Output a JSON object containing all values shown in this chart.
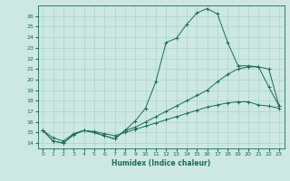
{
  "xlabel": "Humidex (Indice chaleur)",
  "bg_color": "#cce8e0",
  "grid_color": "#aad4c8",
  "line_color": "#1a6b5a",
  "xlim": [
    -0.5,
    23.5
  ],
  "ylim": [
    13.5,
    27.0
  ],
  "xticks": [
    0,
    1,
    2,
    3,
    4,
    5,
    6,
    7,
    8,
    9,
    10,
    11,
    12,
    13,
    14,
    15,
    16,
    17,
    18,
    19,
    20,
    21,
    22,
    23
  ],
  "yticks": [
    14,
    15,
    16,
    17,
    18,
    19,
    20,
    21,
    22,
    23,
    24,
    25,
    26
  ],
  "series": [
    {
      "x": [
        0,
        1,
        2,
        3,
        4,
        5,
        6,
        7,
        8,
        9,
        10,
        11,
        12,
        13,
        14,
        15,
        16,
        17,
        18,
        19,
        20,
        21,
        22,
        23
      ],
      "y": [
        15.2,
        14.2,
        14.0,
        14.8,
        15.2,
        15.0,
        14.7,
        14.4,
        15.2,
        16.1,
        17.3,
        19.8,
        23.5,
        23.9,
        25.2,
        26.3,
        26.7,
        26.2,
        23.5,
        21.3,
        21.3,
        21.2,
        19.3,
        17.5
      ]
    },
    {
      "x": [
        0,
        1,
        2,
        3,
        4,
        5,
        6,
        7,
        8,
        9,
        10,
        11,
        12,
        13,
        14,
        15,
        16,
        17,
        18,
        19,
        20,
        21,
        22,
        23
      ],
      "y": [
        15.2,
        14.2,
        14.0,
        14.8,
        15.2,
        15.0,
        14.7,
        14.4,
        15.2,
        15.5,
        16.0,
        16.5,
        17.0,
        17.5,
        18.0,
        18.5,
        19.0,
        19.8,
        20.5,
        21.0,
        21.2,
        21.2,
        21.0,
        17.5
      ]
    },
    {
      "x": [
        0,
        1,
        2,
        3,
        4,
        5,
        6,
        7,
        8,
        9,
        10,
        11,
        12,
        13,
        14,
        15,
        16,
        17,
        18,
        19,
        20,
        21,
        22,
        23
      ],
      "y": [
        15.2,
        14.5,
        14.2,
        14.9,
        15.2,
        15.1,
        14.9,
        14.7,
        15.0,
        15.3,
        15.6,
        15.9,
        16.2,
        16.5,
        16.8,
        17.1,
        17.4,
        17.6,
        17.8,
        17.9,
        17.9,
        17.6,
        17.5,
        17.3
      ]
    }
  ]
}
